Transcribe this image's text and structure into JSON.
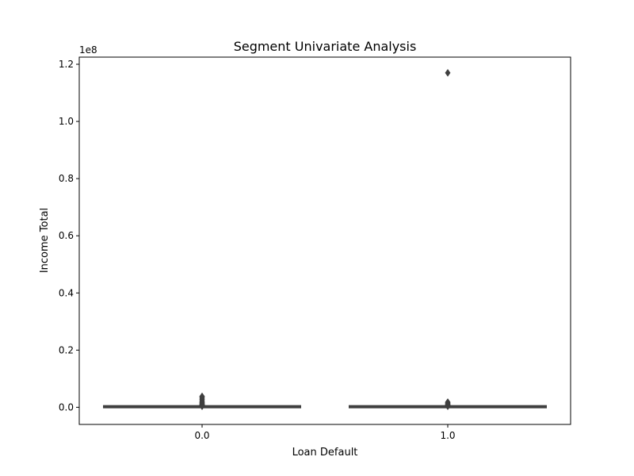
{
  "chart_data": {
    "type": "box",
    "title": "Segment Univariate Analysis",
    "xlabel": "Loan Default",
    "ylabel": "Income Total",
    "y_offset_label": "1e8",
    "categories": [
      "0.0",
      "1.0"
    ],
    "ylim": [
      -6000000,
      122500000
    ],
    "yticks": [
      0,
      0.2,
      0.4,
      0.6,
      0.8,
      1.0,
      1.2
    ],
    "ytick_labels": [
      "0.0",
      "0.2",
      "0.4",
      "0.6",
      "0.8",
      "1.0",
      "1.2"
    ],
    "y_tick_scale": 100000000,
    "grid": false,
    "series": [
      {
        "category": "0.0",
        "box": {
          "whislo": 25650,
          "q1": 112500,
          "median": 148500,
          "q3": 202500,
          "whishi": 337500
        },
        "fliers": [
          360000,
          450000,
          540000,
          630000,
          720000,
          810000,
          900000,
          1080000,
          1350000,
          1575000,
          1800000,
          2250000,
          2700000,
          3150000,
          3600000,
          3825000
        ]
      },
      {
        "category": "1.0",
        "box": {
          "whislo": 25650,
          "q1": 112500,
          "median": 135000,
          "q3": 202500,
          "whishi": 337500
        },
        "fliers": [
          360000,
          450000,
          540000,
          675000,
          810000,
          900000,
          1125000,
          1350000,
          1575000,
          1800000,
          117000000
        ]
      }
    ],
    "colors": {
      "box_line": "#3f3f3f",
      "axes": "#000000"
    }
  }
}
